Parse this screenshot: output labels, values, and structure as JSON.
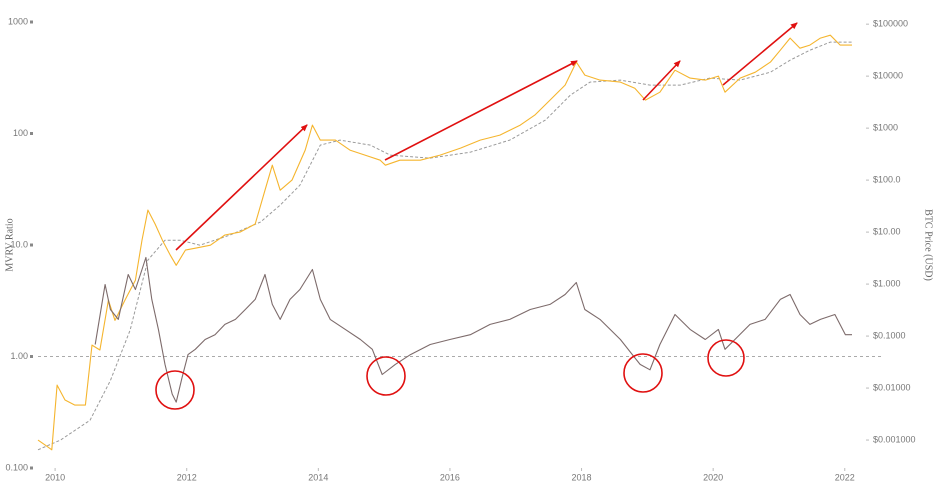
{
  "chart_data": {
    "type": "line",
    "y_label": "MVRV Ratio",
    "y2_label": "BTC Price (USD)",
    "log_y": true,
    "log_y2": true,
    "reference_line": 1,
    "xlim": [
      2009.74,
      2022.11
    ],
    "xticks": [
      2010,
      2012,
      2014,
      2016,
      2018,
      2020,
      2022
    ],
    "ylim": [
      0.1,
      1000
    ],
    "yticks": [
      {
        "value": 0.1,
        "label": "0.100"
      },
      {
        "value": 1,
        "label": "1.00"
      },
      {
        "value": 10,
        "label": "10.0"
      },
      100,
      1000
    ],
    "y2lim": [
      0.00029,
      110000
    ],
    "y2ticks": [
      {
        "value": 0.001,
        "label": "$0.001000"
      },
      {
        "value": 0.01,
        "label": "$0.01000"
      },
      {
        "value": 0.1,
        "label": "$0.1000"
      },
      {
        "value": 1,
        "label": "$1.000"
      },
      {
        "value": 10,
        "label": "$10.00"
      },
      {
        "value": 100,
        "label": "$100.0"
      },
      {
        "value": 1000,
        "label": "$1000"
      },
      {
        "value": 10000,
        "label": "$10000"
      },
      {
        "value": 100000,
        "label": "$100000"
      }
    ],
    "series": [
      {
        "color": "#9a9a9a",
        "style": "dashed",
        "axis": "y2",
        "x": [
          2009.74,
          2010.08,
          2010.53,
          2010.84,
          2011.14,
          2011.41,
          2011.67,
          2011.9,
          2012.2,
          2012.66,
          2013.12,
          2013.42,
          2013.72,
          2014.03,
          2014.33,
          2014.79,
          2015.09,
          2015.7,
          2016.31,
          2016.91,
          2017.45,
          2017.83,
          2018.13,
          2018.59,
          2019.04,
          2019.5,
          2019.95,
          2020.41,
          2020.87,
          2021.17,
          2021.47,
          2021.78,
          2022.11
        ],
        "values": [
          0.00065,
          0.001,
          0.0024,
          0.014,
          0.13,
          2.9,
          7.0,
          7.0,
          5.6,
          8.8,
          15.6,
          33,
          80,
          471,
          588,
          471,
          303,
          265,
          345,
          588,
          1426,
          4310,
          7670,
          8380,
          6713,
          6713,
          9160,
          8380,
          11900,
          20300,
          31600,
          45100,
          45100
        ]
      },
      {
        "color": "#f5b52e",
        "style": "solid",
        "axis": "y2",
        "x": [
          2009.74,
          2009.85,
          2009.95,
          2010.03,
          2010.15,
          2010.3,
          2010.46,
          2010.56,
          2010.68,
          2010.81,
          2010.91,
          2011.06,
          2011.22,
          2011.32,
          2011.41,
          2011.52,
          2011.63,
          2011.75,
          2011.84,
          2011.98,
          2012.13,
          2012.36,
          2012.58,
          2012.81,
          2013.04,
          2013.19,
          2013.3,
          2013.42,
          2013.6,
          2013.8,
          2013.91,
          2014.03,
          2014.26,
          2014.48,
          2014.71,
          2014.94,
          2015.02,
          2015.24,
          2015.55,
          2015.85,
          2016.16,
          2016.46,
          2016.76,
          2017.07,
          2017.29,
          2017.52,
          2017.75,
          2017.92,
          2018.05,
          2018.28,
          2018.59,
          2018.81,
          2018.97,
          2019.19,
          2019.42,
          2019.65,
          2019.88,
          2020.08,
          2020.18,
          2020.41,
          2020.64,
          2020.87,
          2021.02,
          2021.17,
          2021.32,
          2021.47,
          2021.63,
          2021.78,
          2021.93,
          2022.11
        ],
        "values": [
          0.001,
          0.0008,
          0.00065,
          0.0114,
          0.0059,
          0.0047,
          0.0047,
          0.067,
          0.054,
          0.49,
          0.2,
          0.49,
          1.19,
          7.0,
          26.5,
          14.3,
          7.0,
          3.6,
          2.3,
          4.5,
          4.9,
          5.6,
          8.8,
          10,
          14.3,
          64,
          194,
          64,
          100,
          378,
          1142,
          588,
          588,
          378,
          303,
          242,
          194,
          242,
          242,
          303,
          413,
          588,
          733,
          1142,
          1778,
          3453,
          6713,
          18600,
          10450,
          8380,
          7670,
          5870,
          3453,
          4920,
          13000,
          9160,
          8380,
          10000,
          4920,
          9160,
          11900,
          18600,
          31600,
          53800,
          34500,
          39500,
          53800,
          61400,
          39500,
          39500
        ]
      },
      {
        "color": "#7d6b6b",
        "style": "solid",
        "axis": "y",
        "x": [
          2010.61,
          2010.76,
          2010.84,
          2010.96,
          2011.11,
          2011.22,
          2011.32,
          2011.38,
          2011.47,
          2011.57,
          2011.67,
          2011.78,
          2011.84,
          2011.93,
          2012.02,
          2012.13,
          2012.28,
          2012.43,
          2012.58,
          2012.74,
          2012.89,
          2013.04,
          2013.19,
          2013.3,
          2013.42,
          2013.57,
          2013.72,
          2013.91,
          2014.03,
          2014.18,
          2014.41,
          2014.64,
          2014.82,
          2014.97,
          2015.17,
          2015.4,
          2015.7,
          2016.0,
          2016.31,
          2016.61,
          2016.91,
          2017.22,
          2017.52,
          2017.75,
          2017.92,
          2018.05,
          2018.28,
          2018.59,
          2018.89,
          2019.04,
          2019.19,
          2019.42,
          2019.65,
          2019.88,
          2020.08,
          2020.18,
          2020.33,
          2020.56,
          2020.79,
          2021.02,
          2021.17,
          2021.32,
          2021.47,
          2021.63,
          2021.85,
          2022.01,
          2022.11
        ],
        "values": [
          1.28,
          4.42,
          2.64,
          2.15,
          5.44,
          3.99,
          6.03,
          7.73,
          3.25,
          1.75,
          0.85,
          0.46,
          0.39,
          0.65,
          1.04,
          1.16,
          1.42,
          1.57,
          1.94,
          2.15,
          2.64,
          3.25,
          5.44,
          2.93,
          2.15,
          3.25,
          3.99,
          6.03,
          3.25,
          2.15,
          1.75,
          1.42,
          1.16,
          0.69,
          0.85,
          1.04,
          1.28,
          1.42,
          1.57,
          1.94,
          2.15,
          2.64,
          2.93,
          3.6,
          4.61,
          2.64,
          2.15,
          1.42,
          0.85,
          0.76,
          1.28,
          2.38,
          1.75,
          1.42,
          1.75,
          1.16,
          1.42,
          1.94,
          2.15,
          3.25,
          3.6,
          2.38,
          1.94,
          2.15,
          2.38,
          1.57,
          1.57
        ]
      }
    ]
  }
}
